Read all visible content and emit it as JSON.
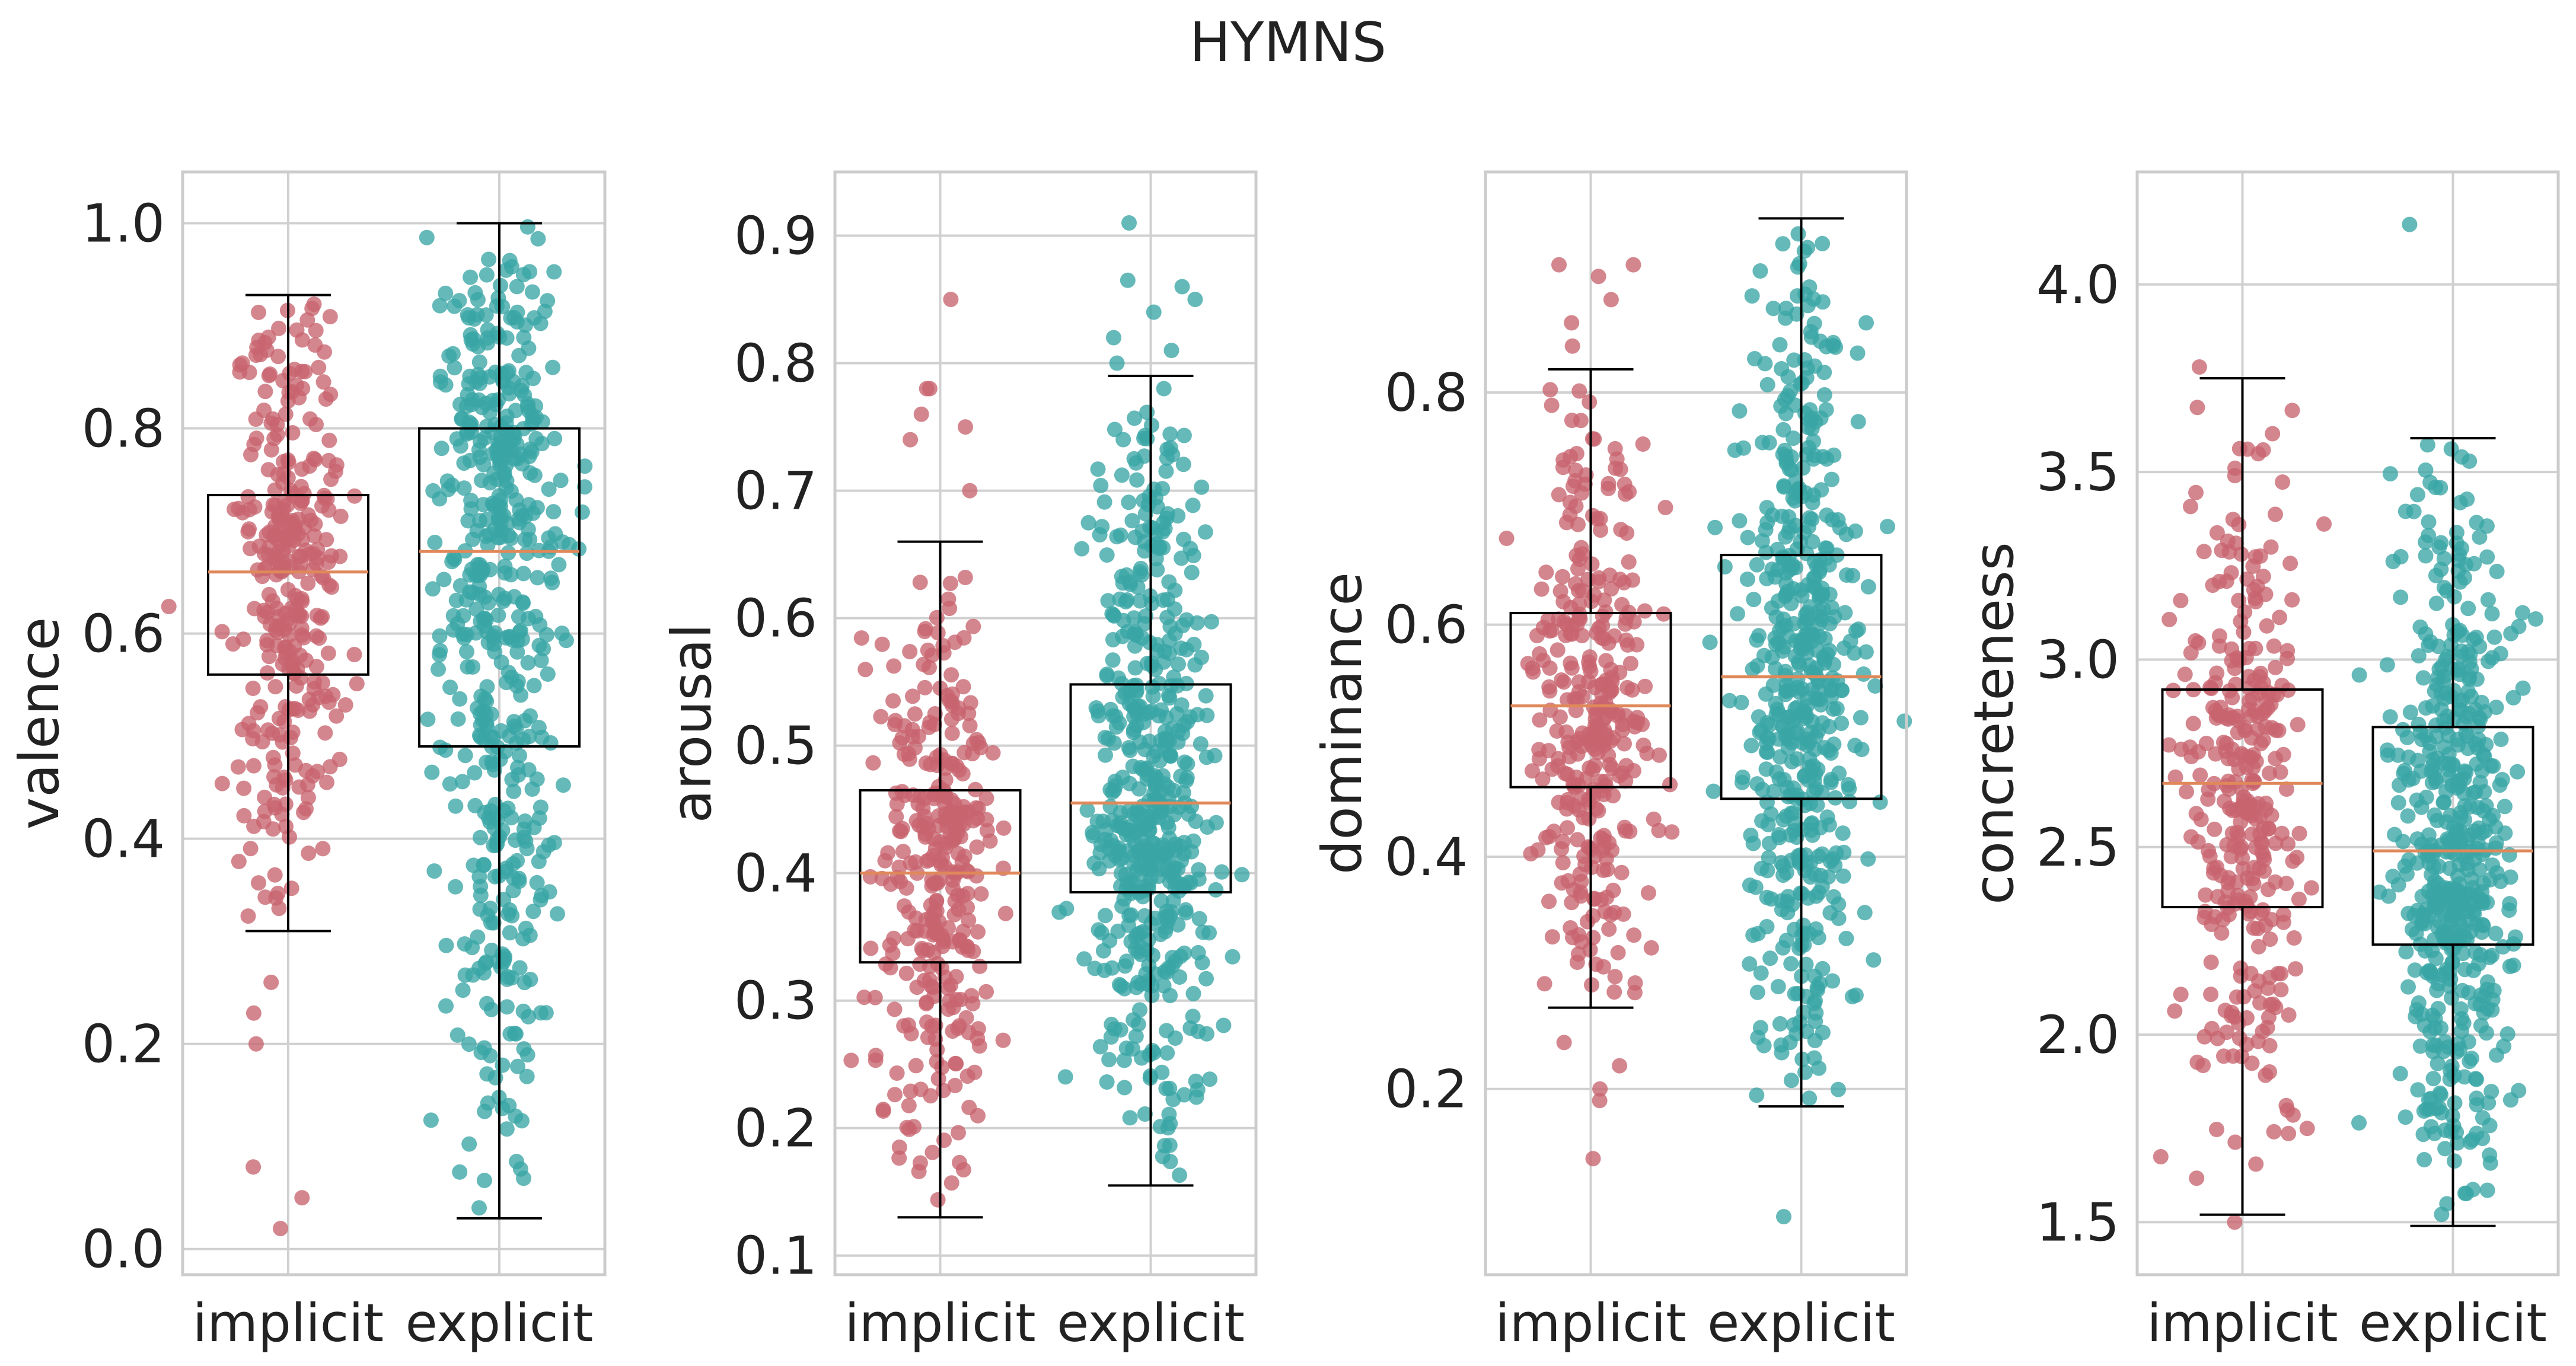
{
  "figure": {
    "title": "HYMNS"
  },
  "style": {
    "implicit_color": "#c8646e",
    "explicit_color": "#3aa5a5",
    "median_color": "#e0885a",
    "grid_color": "#d0d0d0",
    "frame_color": "#cccccc"
  },
  "chart_data": [
    {
      "type": "scatter",
      "subtype": "box-with-jitter",
      "title": "",
      "xlabel": "",
      "ylabel": "valence",
      "categories": [
        "implicit",
        "explicit"
      ],
      "ylim": [
        -0.025,
        1.05
      ],
      "yticks": [
        0.0,
        0.2,
        0.4,
        0.6,
        0.8,
        1.0
      ],
      "ytick_labels": [
        "0.0",
        "0.2",
        "0.4",
        "0.6",
        "0.8",
        "1.0"
      ],
      "grid": true,
      "series": [
        {
          "values": [],
          "n_points": 330,
          "box": {
            "whisker_low": 0.31,
            "q1": 0.56,
            "median": 0.66,
            "q3": 0.735,
            "whisker_high": 0.93
          },
          "point_range": [
            0.31,
            0.93
          ],
          "outliers": [
            0.05,
            0.02,
            0.23,
            0.26,
            0.2,
            0.08
          ]
        },
        {
          "values": [],
          "n_points": 530,
          "box": {
            "whisker_low": 0.03,
            "q1": 0.49,
            "median": 0.68,
            "q3": 0.8,
            "whisker_high": 1.0
          },
          "point_range": [
            0.03,
            1.0
          ],
          "outliers": []
        }
      ]
    },
    {
      "type": "scatter",
      "subtype": "box-with-jitter",
      "title": "",
      "xlabel": "",
      "ylabel": "arousal",
      "categories": [
        "implicit",
        "explicit"
      ],
      "ylim": [
        0.085,
        0.95
      ],
      "yticks": [
        0.1,
        0.2,
        0.3,
        0.4,
        0.5,
        0.6,
        0.7,
        0.8,
        0.9
      ],
      "ytick_labels": [
        "0.1",
        "0.2",
        "0.3",
        "0.4",
        "0.5",
        "0.6",
        "0.7",
        "0.8",
        "0.9"
      ],
      "grid": true,
      "series": [
        {
          "values": [],
          "n_points": 330,
          "box": {
            "whisker_low": 0.13,
            "q1": 0.33,
            "median": 0.4,
            "q3": 0.465,
            "whisker_high": 0.66
          },
          "point_range": [
            0.13,
            0.66
          ],
          "outliers": [
            0.7,
            0.74,
            0.75,
            0.76,
            0.78,
            0.78,
            0.85,
            0.185
          ]
        },
        {
          "values": [],
          "n_points": 530,
          "box": {
            "whisker_low": 0.155,
            "q1": 0.385,
            "median": 0.455,
            "q3": 0.548,
            "whisker_high": 0.79
          },
          "point_range": [
            0.155,
            0.79
          ],
          "outliers": [
            0.8,
            0.81,
            0.82,
            0.84,
            0.85,
            0.86,
            0.865,
            0.91,
            0.78
          ]
        }
      ]
    },
    {
      "type": "scatter",
      "subtype": "box-with-jitter",
      "title": "",
      "xlabel": "",
      "ylabel": "dominance",
      "categories": [
        "implicit",
        "explicit"
      ],
      "ylim": [
        0.04,
        0.99
      ],
      "yticks": [
        0.2,
        0.4,
        0.6,
        0.8
      ],
      "ytick_labels": [
        "0.2",
        "0.4",
        "0.6",
        "0.8"
      ],
      "grid": true,
      "series": [
        {
          "values": [],
          "n_points": 330,
          "box": {
            "whisker_low": 0.27,
            "q1": 0.46,
            "median": 0.53,
            "q3": 0.61,
            "whisker_high": 0.82
          },
          "point_range": [
            0.27,
            0.82
          ],
          "outliers": [
            0.14,
            0.19,
            0.2,
            0.22,
            0.24,
            0.84,
            0.86,
            0.88,
            0.9,
            0.91,
            0.91
          ]
        },
        {
          "values": [],
          "n_points": 530,
          "box": {
            "whisker_low": 0.185,
            "q1": 0.45,
            "median": 0.555,
            "q3": 0.66,
            "whisker_high": 0.95
          },
          "point_range": [
            0.185,
            0.95
          ],
          "outliers": [
            0.09
          ]
        }
      ]
    },
    {
      "type": "scatter",
      "subtype": "box-with-jitter",
      "title": "",
      "xlabel": "",
      "ylabel": "concreteness",
      "categories": [
        "implicit",
        "explicit"
      ],
      "ylim": [
        1.36,
        4.3
      ],
      "yticks": [
        1.5,
        2.0,
        2.5,
        3.0,
        3.5,
        4.0
      ],
      "ytick_labels": [
        "1.5",
        "2.0",
        "2.5",
        "3.0",
        "3.5",
        "4.0"
      ],
      "grid": true,
      "series": [
        {
          "values": [],
          "n_points": 330,
          "box": {
            "whisker_low": 1.52,
            "q1": 2.34,
            "median": 2.67,
            "q3": 2.92,
            "whisker_high": 3.75
          },
          "point_range": [
            1.52,
            3.75
          ],
          "outliers": [
            3.78,
            1.5
          ]
        },
        {
          "values": [],
          "n_points": 530,
          "box": {
            "whisker_low": 1.49,
            "q1": 2.24,
            "median": 2.49,
            "q3": 2.82,
            "whisker_high": 3.59
          },
          "point_range": [
            1.49,
            3.59
          ],
          "outliers": [
            4.16
          ]
        }
      ]
    }
  ]
}
